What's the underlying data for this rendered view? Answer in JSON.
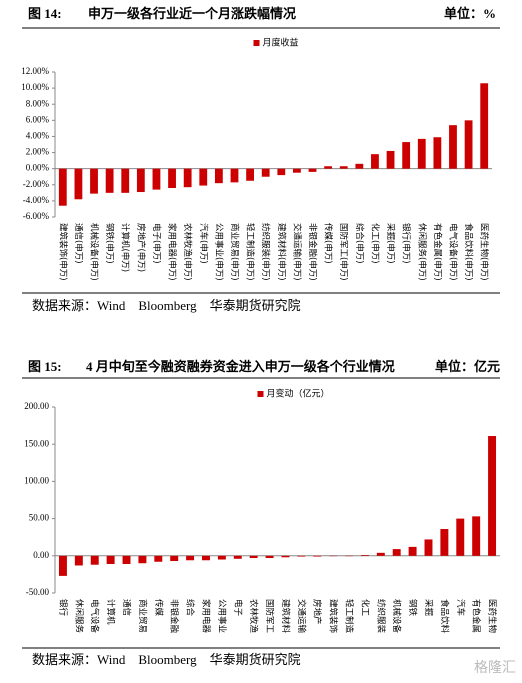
{
  "figures": [
    {
      "label": "图 14:",
      "title": "申万一级各行业近一个月涨跌幅情况",
      "unit": "单位：%",
      "source": "数据来源：Wind　Bloomberg　华泰期货研究院"
    },
    {
      "label": "图 15:",
      "title": "4 月中旬至今融资融券资金进入申万一级各个行业情况",
      "unit": "单位：亿元",
      "source": "数据来源：Wind　Bloomberg　华泰期货研究院"
    }
  ],
  "watermark": "格隆汇",
  "chart_data": [
    {
      "type": "bar",
      "categories": [
        "建筑装饰(申万)",
        "通信(申万)",
        "机械设备(申万)",
        "钢铁(申万)",
        "计算机(申万)",
        "房地产(申万)",
        "电子(申万)",
        "家用电器(申万)",
        "农林牧渔(申万)",
        "汽车(申万)",
        "公用事业(申万)",
        "商业贸易(申万)",
        "轻工制造(申万)",
        "纺织服装(申万)",
        "建筑材料(申万)",
        "交通运输(申万)",
        "非银金融(申万)",
        "传媒(申万)",
        "国防军工(申万)",
        "综合(申万)",
        "化工(申万)",
        "采掘(申万)",
        "银行(申万)",
        "休闲服务(申万)",
        "有色金属(申万)",
        "电气设备(申万)",
        "食品饮料(申万)",
        "医药生物(申万)"
      ],
      "series": [
        {
          "name": "月度收益",
          "color": "#cc0000",
          "values": [
            -4.6,
            -3.8,
            -3.1,
            -3.0,
            -3.0,
            -2.9,
            -2.6,
            -2.4,
            -2.3,
            -2.1,
            -1.8,
            -1.7,
            -1.5,
            -1.0,
            -0.8,
            -0.5,
            -0.4,
            0.3,
            0.3,
            0.6,
            1.8,
            2.2,
            3.3,
            3.7,
            3.9,
            5.4,
            6.0,
            10.6
          ]
        }
      ],
      "ylim": [
        -6,
        12
      ],
      "yticks": [
        {
          "value": -6,
          "label": "-6.00%"
        },
        {
          "value": -4,
          "label": "-4.00%"
        },
        {
          "value": -2,
          "label": "-2.00%"
        },
        {
          "value": 0,
          "label": "0.00%"
        },
        {
          "value": 2,
          "label": "2.00%"
        },
        {
          "value": 4,
          "label": "4.00%"
        },
        {
          "value": 6,
          "label": "6.00%"
        },
        {
          "value": 8,
          "label": "8.00%"
        },
        {
          "value": 10,
          "label": "10.00%"
        },
        {
          "value": 12,
          "label": "12.00%"
        }
      ],
      "grid": false,
      "legend": "top"
    },
    {
      "type": "bar",
      "categories": [
        "银行",
        "休闲服务",
        "电气设备",
        "计算机",
        "通信",
        "商业贸易",
        "传媒",
        "非银金融",
        "综合",
        "家用电器",
        "公用事业",
        "电子",
        "农林牧渔",
        "国防军工",
        "建筑材料",
        "交通运输",
        "房地产",
        "建筑装饰",
        "轻工制造",
        "化工",
        "纺织服装",
        "机械设备",
        "钢铁",
        "采掘",
        "食品饮料",
        "汽车",
        "有色金属",
        "医药生物"
      ],
      "series": [
        {
          "name": "月变动（亿元）",
          "color": "#cc0000",
          "values": [
            -27,
            -13,
            -12,
            -11,
            -11,
            -10,
            -8,
            -7,
            -6,
            -6,
            -5,
            -4,
            -3,
            -3,
            -2,
            -1,
            -1,
            -0.5,
            -0.5,
            1,
            4,
            9,
            12,
            22,
            36,
            50,
            53,
            161
          ]
        }
      ],
      "ylim": [
        -50,
        200
      ],
      "yticks": [
        {
          "value": -50,
          "label": "-50.00"
        },
        {
          "value": 0,
          "label": "0.00"
        },
        {
          "value": 50,
          "label": "50.00"
        },
        {
          "value": 100,
          "label": "100.00"
        },
        {
          "value": 150,
          "label": "150.00"
        },
        {
          "value": 200,
          "label": "200.00"
        }
      ],
      "grid": false,
      "legend": "top"
    }
  ]
}
